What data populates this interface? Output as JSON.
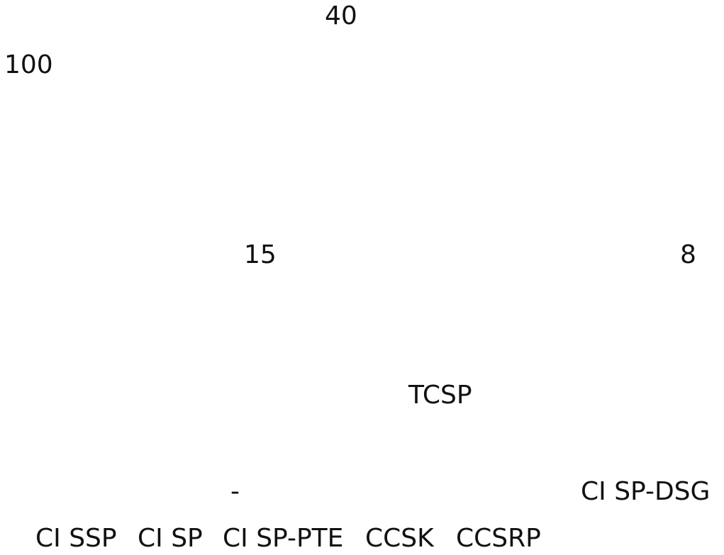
{
  "document": {
    "fragments": {
      "num_40": "40",
      "num_100": "100",
      "num_15": "15",
      "num_8": "8",
      "tcsp": "TCSP",
      "dash": "-",
      "cisp_dsg": "CI SP-DSG",
      "cissp": "CI SSP",
      "cisp": "CI SP",
      "cisp_pte": "CI SP-PTE",
      "ccsk": "CCSK",
      "ccsrp": "CCSRP"
    }
  }
}
